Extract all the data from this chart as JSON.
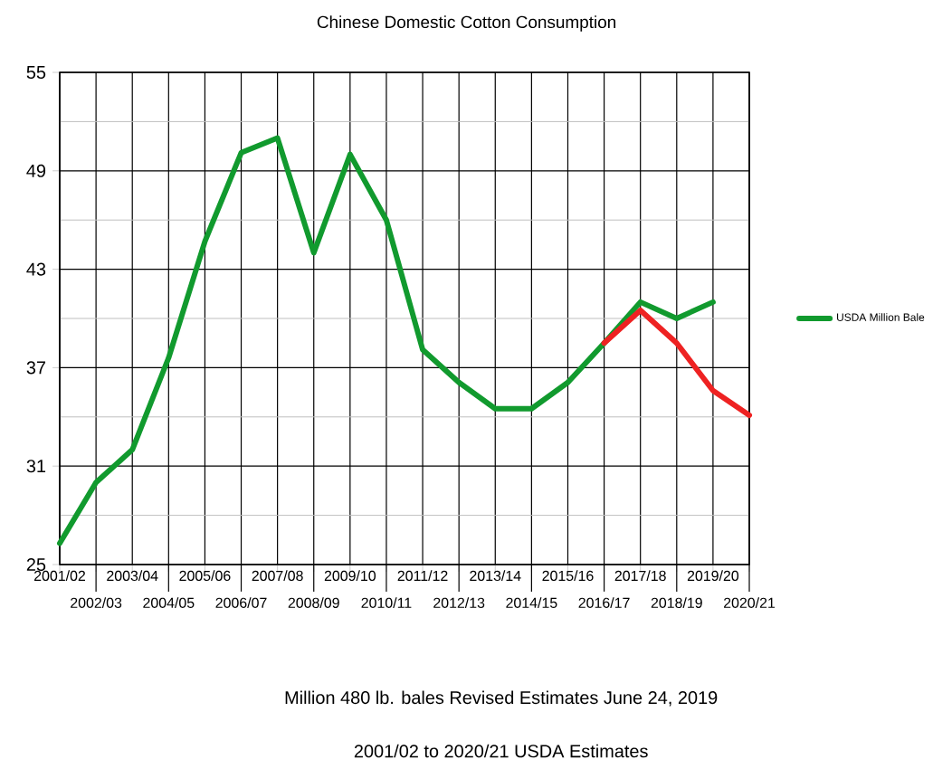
{
  "chart_data": {
    "type": "line",
    "title": "Chinese Domestic Cotton Consumption",
    "categories": [
      "2001/02",
      "2002/03",
      "2003/04",
      "2004/05",
      "2005/06",
      "2006/07",
      "2007/08",
      "2008/09",
      "2009/10",
      "2010/11",
      "2011/12",
      "2012/13",
      "2013/14",
      "2014/15",
      "2015/16",
      "2016/17",
      "2017/18",
      "2018/19",
      "2019/20",
      "2020/21"
    ],
    "series": [
      {
        "name": "USDA Million Bale",
        "color": "#119a2e",
        "values": [
          26.3,
          30,
          32,
          37.6,
          44.7,
          50.1,
          51,
          44,
          50,
          46,
          38.1,
          36.1,
          34.5,
          34.5,
          36.1,
          38.5,
          41,
          40,
          41,
          null
        ]
      },
      {
        "color": "#ee2222",
        "values": [
          null,
          null,
          null,
          null,
          null,
          null,
          null,
          null,
          null,
          null,
          null,
          null,
          null,
          null,
          null,
          38.5,
          40.5,
          38.5,
          35.6,
          34.1
        ]
      }
    ],
    "ylim": [
      25,
      55
    ],
    "yticks": [
      25,
      31,
      37,
      43,
      49,
      55
    ],
    "grid": true,
    "legend": "right",
    "marker": "none",
    "line_style": "solid",
    "annotations": [
      "Million 480 lb. bales  Revised Estimates June 24, 2019",
      "2001/02 to 2020/21  USDA Estimates"
    ]
  }
}
